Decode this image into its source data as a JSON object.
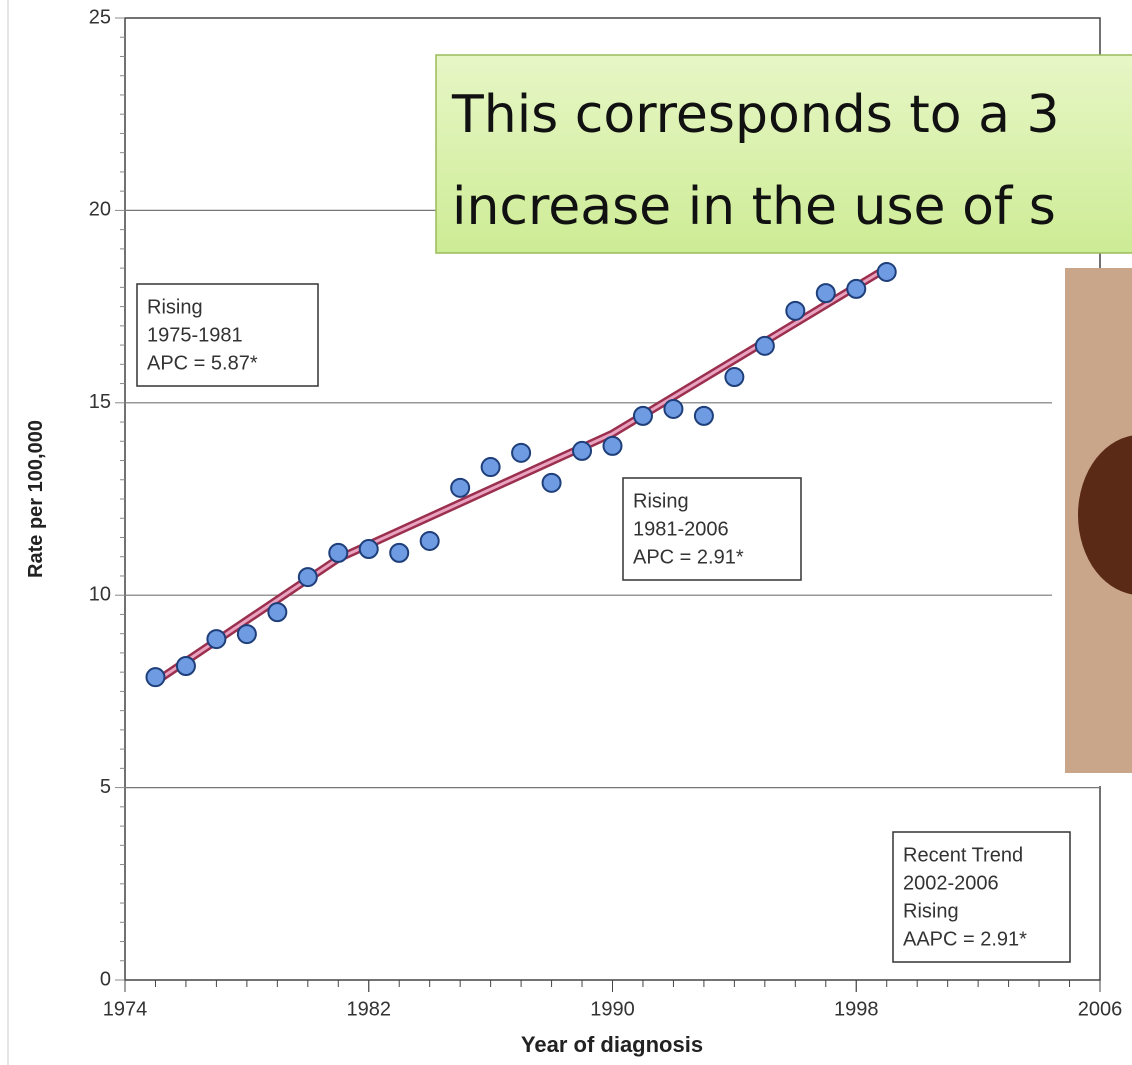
{
  "chart_data": {
    "type": "scatter",
    "y_label": "Rate per 100,000",
    "x_label": "Year of diagnosis",
    "xlim": [
      1974,
      2006
    ],
    "xticks": [
      1974,
      1982,
      1990,
      1998,
      2006
    ],
    "ylim": [
      0,
      25
    ],
    "yticks": [
      0,
      5,
      10,
      15,
      20,
      25
    ],
    "grid": true,
    "series": [
      {
        "color": "#6f9be3",
        "x": [
          1975,
          1976,
          1977,
          1978,
          1979,
          1980,
          1981,
          1982,
          1983,
          1984,
          1985,
          1986,
          1987,
          1988,
          1989,
          1990,
          1991,
          1992,
          1993,
          1994,
          1995,
          1996,
          1997,
          1998,
          1999
        ],
        "values": [
          7.87,
          8.16,
          8.86,
          8.99,
          9.56,
          10.47,
          11.1,
          11.2,
          11.1,
          11.41,
          12.79,
          13.33,
          13.7,
          12.92,
          13.75,
          13.88,
          14.66,
          14.84,
          14.66,
          15.67,
          16.48,
          17.39,
          17.85,
          17.96,
          18.4
        ]
      },
      {
        "color": "#9b2f4e",
        "x": [
          1975,
          1981,
          1990,
          1999
        ],
        "values": [
          7.75,
          10.95,
          14.2,
          18.5
        ]
      }
    ],
    "annotations": [
      [
        "Rising",
        "1975-1981",
        "APC =  5.87*"
      ],
      [
        "Rising",
        "1981-2006",
        "APC =  2.91*"
      ],
      [
        "Recent Trend",
        "2002-2006",
        "Rising",
        "AAPC =  2.91*"
      ]
    ],
    "callout": [
      "This corresponds to a 3",
      "increase in the use of s"
    ]
  }
}
